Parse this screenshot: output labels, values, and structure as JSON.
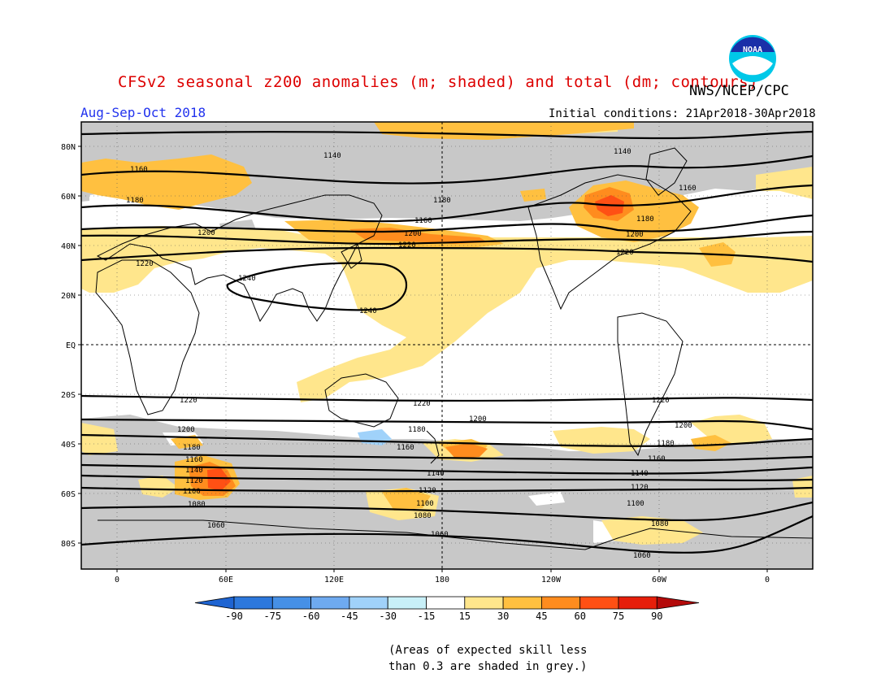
{
  "header": {
    "title": "CFSv2 seasonal z200 anomalies (m; shaded) and total (dm; contours)",
    "agency": "NWS/NCEP/CPC",
    "logo_text": "NOAA",
    "period": "Aug-Sep-Oct 2018",
    "initial_conditions": "Initial conditions: 21Apr2018-30Apr2018"
  },
  "map": {
    "lat_labels": [
      "80N",
      "60N",
      "40N",
      "20N",
      "EQ",
      "20S",
      "40S",
      "60S",
      "80S"
    ],
    "lon_labels": [
      "0",
      "60E",
      "120E",
      "180",
      "120W",
      "60W",
      "0"
    ],
    "contour_labels": {
      "c1140n": "1140",
      "c1160n": "1160",
      "c1180n": "1180",
      "c1200n": "1200",
      "c1220n": "1220",
      "c1240": "1240",
      "c1220s": "1220",
      "c1200s": "1200",
      "c1180s": "1180",
      "c1160s": "1160",
      "c1140s": "1140",
      "c1120s": "1120",
      "c1100s": "1100",
      "c1080s": "1080",
      "c1060s": "1060"
    }
  },
  "colorbar": {
    "ticks": [
      "-90",
      "-75",
      "-60",
      "-45",
      "-30",
      "-15",
      "15",
      "30",
      "45",
      "60",
      "75",
      "90"
    ],
    "colors": [
      "#1e64d2",
      "#2d78dc",
      "#4690e6",
      "#6eaaf0",
      "#a0d2fa",
      "#c8f0f8",
      "#ffffff",
      "#ffe68c",
      "#ffc040",
      "#ff8c1e",
      "#ff5014",
      "#e61e0a",
      "#b40a0a"
    ]
  },
  "notes": {
    "line1": "(Areas of expected skill less",
    "line2": "than 0.3 are shaded in grey.)"
  }
}
